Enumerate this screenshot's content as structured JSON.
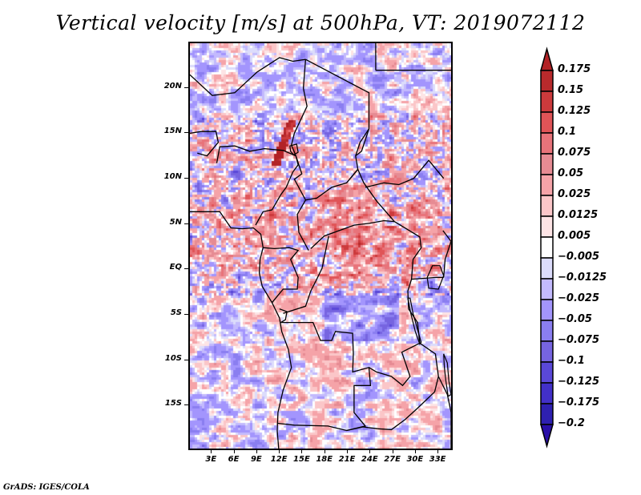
{
  "title": "Vertical velocity [m/s] at 500hPa, VT: 2019072112",
  "credit": "GrADS: IGES/COLA",
  "chart_data": {
    "type": "heatmap",
    "title": "Vertical velocity [m/s] at 500hPa, VT: 2019072112",
    "variable": "Vertical velocity",
    "units": "m/s",
    "level": "500hPa",
    "valid_time": "2019072112",
    "region": "Central Africa",
    "lon_range": [
      0,
      35
    ],
    "lat_range": [
      -20,
      25
    ],
    "lon_ticks": [
      "3E",
      "6E",
      "9E",
      "12E",
      "15E",
      "18E",
      "21E",
      "24E",
      "27E",
      "30E",
      "33E"
    ],
    "lon_tick_values": [
      3,
      6,
      9,
      12,
      15,
      18,
      21,
      24,
      27,
      30,
      33
    ],
    "lat_ticks": [
      "20N",
      "15N",
      "10N",
      "5N",
      "EQ",
      "5S",
      "10S",
      "15S"
    ],
    "lat_tick_values": [
      20,
      15,
      10,
      5,
      0,
      -5,
      -10,
      -15
    ],
    "colorbar": {
      "orientation": "vertical",
      "placement": "right",
      "extend": "both",
      "labels": [
        "0.175",
        "0.15",
        "0.125",
        "0.1",
        "0.075",
        "0.05",
        "0.025",
        "0.0125",
        "0.005",
        "-0.005",
        "-0.0125",
        "-0.025",
        "-0.05",
        "-0.075",
        "-0.1",
        "-0.125",
        "-0.175",
        "-0.2"
      ],
      "levels": [
        0.175,
        0.15,
        0.125,
        0.1,
        0.075,
        0.05,
        0.025,
        0.0125,
        0.005,
        -0.005,
        -0.0125,
        -0.025,
        -0.05,
        -0.075,
        -0.1,
        -0.125,
        -0.175,
        -0.2
      ],
      "colors_top_to_bottom": [
        "#b22226",
        "#b82a2c",
        "#cc3a3c",
        "#e05457",
        "#e8737a",
        "#e68b93",
        "#f5a3a8",
        "#fbc6c8",
        "#fde4e5",
        "#ffffff",
        "#dcdcfb",
        "#c3bafd",
        "#a395fd",
        "#8a7ef0",
        "#7664e0",
        "#5a48d8",
        "#4230c8",
        "#2e20b0",
        "#2a0fa8"
      ]
    },
    "features": [
      {
        "description": "Strong ascent (red) band across ~0-10N, 10E-30E (tropical rain belt)"
      },
      {
        "description": "Intense localized ascent near Lake Chad / northern Nigeria-Chad (~12-16N, 12-15E)"
      },
      {
        "description": "Subsidence (blue) dominant over Sahara north of 15N and over ocean/southern Africa"
      },
      {
        "description": "Scattered red cells along ~15N over Sudan/Chad"
      }
    ]
  }
}
